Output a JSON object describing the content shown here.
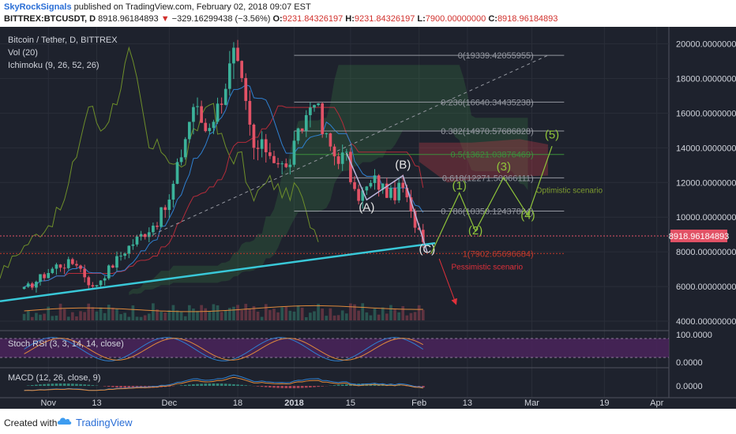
{
  "header": {
    "author": "SkyRockSignals",
    "published": "published on TradingView.com, February 02, 2018 09:07 EST",
    "symbol": "BITTREX:BTCUSDT, D",
    "last": "8918.96184893",
    "change_arrow": "▼",
    "change": "−329.16299438 (−3.56%)",
    "o_label": "O:",
    "o_value": "9231.84326197",
    "h_label": "H:",
    "h_value": "9231.84326197",
    "l_label": "L:",
    "l_value": "7900.00000000",
    "c_label": "C:",
    "c_value": "8918.96184893"
  },
  "chart_data": {
    "type": "candlestick",
    "title": "Bitcoin / Tether, D, BITTREX",
    "indicators": [
      "Vol (20)",
      "Ichimoku (9, 26, 52, 26)"
    ],
    "x_ticks": [
      "Nov",
      "13",
      "Dec",
      "18",
      "2018",
      "15",
      "Feb",
      "13",
      "Mar",
      "19",
      "Apr"
    ],
    "y_ticks": [
      "20000.00000000",
      "18000.00000000",
      "16000.00000000",
      "14000.00000000",
      "12000.00000000",
      "10000.00000000",
      "8000.00000000",
      "6000.00000000",
      "4000.00000000"
    ],
    "ylim": [
      3500,
      20800
    ],
    "price_label": "8918.96184893",
    "price_path": [
      {
        "date": "2017-10-26",
        "close": 5800
      },
      {
        "date": "2017-11-03",
        "close": 7200
      },
      {
        "date": "2017-11-08",
        "close": 7400
      },
      {
        "date": "2017-11-12",
        "close": 5900
      },
      {
        "date": "2017-11-20",
        "close": 8100
      },
      {
        "date": "2017-11-28",
        "close": 9800
      },
      {
        "date": "2017-12-01",
        "close": 10900
      },
      {
        "date": "2017-12-07",
        "close": 16500
      },
      {
        "date": "2017-12-10",
        "close": 15100
      },
      {
        "date": "2017-12-13",
        "close": 16300
      },
      {
        "date": "2017-12-17",
        "close": 19300
      },
      {
        "date": "2017-12-19",
        "close": 17500
      },
      {
        "date": "2017-12-22",
        "close": 13900
      },
      {
        "date": "2017-12-25",
        "close": 14000
      },
      {
        "date": "2017-12-30",
        "close": 12700
      },
      {
        "date": "2018-01-06",
        "close": 17100
      },
      {
        "date": "2018-01-08",
        "close": 14900
      },
      {
        "date": "2018-01-11",
        "close": 13600
      },
      {
        "date": "2018-01-14",
        "close": 13400
      },
      {
        "date": "2018-01-16",
        "close": 11200
      },
      {
        "date": "2018-01-18",
        "close": 11400
      },
      {
        "date": "2018-01-21",
        "close": 12100
      },
      {
        "date": "2018-01-25",
        "close": 11250
      },
      {
        "date": "2018-01-28",
        "close": 11700
      },
      {
        "date": "2018-01-30",
        "close": 10100
      },
      {
        "date": "2018-02-02",
        "close": 8918.96
      }
    ],
    "fib_levels": [
      {
        "label": "0(19339.42055955)",
        "value": 19339.42
      },
      {
        "label": "0.236(16640.34435238)",
        "value": 16640.34
      },
      {
        "label": "0.382(14970.57686828)",
        "value": 14970.58
      },
      {
        "label": "0.5(13621.03876469)",
        "value": 13621.04
      },
      {
        "label": "0.618(12271.50066111)",
        "value": 12271.5
      },
      {
        "label": "0.786(10350.12437804)",
        "value": 10350.12
      },
      {
        "label": "1(7902.65696684)",
        "value": 7902.66
      }
    ],
    "trendline": [
      {
        "date": "2017-10-20",
        "value": 5150
      },
      {
        "date": "2018-02-05",
        "value": 8500
      }
    ],
    "wave_labels": [
      {
        "label": "(A)",
        "date": "2018-01-19",
        "value": 10350
      },
      {
        "label": "(B)",
        "date": "2018-01-28",
        "value": 12800
      },
      {
        "label": "(C)",
        "date": "2018-02-03",
        "value": 7950
      }
    ],
    "optimistic": {
      "label": "Optimistic scenario",
      "path": [
        {
          "date": "2018-02-04",
          "value": 7900
        },
        {
          "date": "2018-02-11",
          "value": 11400
        },
        {
          "date": "2018-02-15",
          "value": 9200
        },
        {
          "date": "2018-02-22",
          "value": 12300
        },
        {
          "date": "2018-02-28",
          "value": 10100
        },
        {
          "date": "2018-03-06",
          "value": 14100
        }
      ],
      "waves": [
        {
          "label": "(1)",
          "date": "2018-02-11",
          "value": 11600
        },
        {
          "label": "(2)",
          "date": "2018-02-15",
          "value": 9000
        },
        {
          "label": "(3)",
          "date": "2018-02-22",
          "value": 12700
        },
        {
          "label": "(4)",
          "date": "2018-02-28",
          "value": 9900
        },
        {
          "label": "(5)",
          "date": "2018-03-06",
          "value": 14550
        }
      ]
    },
    "pessimistic": {
      "label": "Pessimistic scenario",
      "from": {
        "date": "2018-02-06",
        "value": 7600
      },
      "to": {
        "date": "2018-02-10",
        "value": 5100
      }
    },
    "stoch_rsi": {
      "label": "Stoch RSI (3, 3, 14, 14, close)",
      "y_ticks": [
        "100.0000",
        "0.0000"
      ]
    },
    "macd": {
      "label": "MACD (12, 26, close, 9)",
      "y_ticks": [
        "0.0000"
      ]
    }
  },
  "footer": {
    "created_with": "Created with",
    "brand": "TradingView"
  },
  "colors": {
    "background": "#1e222d",
    "up_candle": "#3bb29a",
    "down_candle": "#e25266",
    "trendline": "#39c8d8",
    "optimistic": "#8fc43a",
    "pessimistic": "#e0303a",
    "stoch_band": "#4a235c"
  }
}
